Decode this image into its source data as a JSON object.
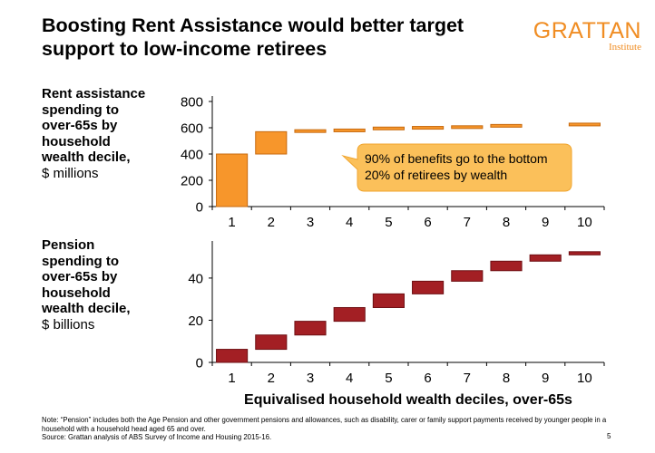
{
  "title": "Boosting Rent Assistance would better target support to low-income retirees",
  "logo": {
    "name": "GRATTAN",
    "sub": "Institute"
  },
  "top_label": {
    "line1": "Rent assistance",
    "line2": "spending to",
    "line3": "over-65s by",
    "line4": "household",
    "line5": "wealth decile,",
    "units": "$ millions"
  },
  "bottom_label": {
    "line1": "Pension",
    "line2": "spending to",
    "line3": "over-65s by",
    "line4": "household",
    "line5": "wealth decile,",
    "units": "$ billions"
  },
  "note": "Note: “Pension” includes both the Age Pension and other government pensions and allowances, such as disability, carer or family support payments received by younger people in a household with a household head aged 65 and over.",
  "source": "Source: Grattan analysis of ABS Survey of Income and Housing 2015-16.",
  "page_number": "5",
  "colors": {
    "rent_fill": "#f7962b",
    "rent_stroke": "#c76a0f",
    "pension_fill": "#a31f24",
    "pension_stroke": "#6e0f13",
    "callout": "#fbc05a",
    "logo": "#f08d23"
  },
  "chart_data": [
    {
      "type": "bar",
      "subtype": "waterfall",
      "categories": [
        "1",
        "2",
        "3",
        "4",
        "5",
        "6",
        "7",
        "8",
        "9",
        "10"
      ],
      "values": [
        400,
        170,
        15,
        5,
        15,
        5,
        5,
        10,
        0,
        10
      ],
      "ylim": [
        0,
        800
      ],
      "yticks": [
        0,
        200,
        400,
        600,
        800
      ],
      "annotation": "90% of benefits go to the bottom 20% of retirees by wealth",
      "annotation_line1": "90% of benefits go to the bottom",
      "annotation_line2": "20% of retirees by wealth"
    },
    {
      "type": "bar",
      "subtype": "waterfall",
      "categories": [
        "1",
        "2",
        "3",
        "4",
        "5",
        "6",
        "7",
        "8",
        "9",
        "10"
      ],
      "values": [
        6.2,
        6.8,
        6.5,
        6.5,
        6.5,
        6.0,
        5.0,
        4.5,
        3.0,
        1.5
      ],
      "ylim": [
        0,
        55
      ],
      "yticks": [
        0,
        20,
        40
      ],
      "xlabel": "Equivalised household wealth deciles, over-65s"
    }
  ]
}
